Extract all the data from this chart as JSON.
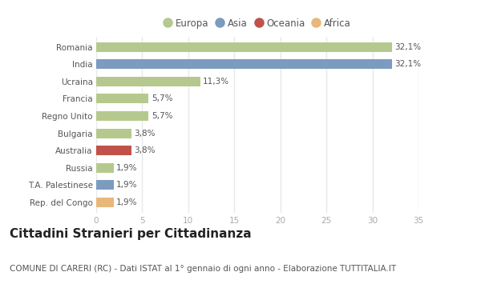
{
  "categories": [
    "Romania",
    "India",
    "Ucraina",
    "Francia",
    "Regno Unito",
    "Bulgaria",
    "Australia",
    "Russia",
    "T.A. Palestinese",
    "Rep. del Congo"
  ],
  "values": [
    32.1,
    32.1,
    11.3,
    5.7,
    5.7,
    3.8,
    3.8,
    1.9,
    1.9,
    1.9
  ],
  "labels": [
    "32,1%",
    "32,1%",
    "11,3%",
    "5,7%",
    "5,7%",
    "3,8%",
    "3,8%",
    "1,9%",
    "1,9%",
    "1,9%"
  ],
  "colors": [
    "#b5c98e",
    "#7b9bbf",
    "#b5c98e",
    "#b5c98e",
    "#b5c98e",
    "#b5c98e",
    "#c0524a",
    "#b5c98e",
    "#7b9bbf",
    "#e8b87a"
  ],
  "legend_labels": [
    "Europa",
    "Asia",
    "Oceania",
    "Africa"
  ],
  "legend_colors": [
    "#b5c98e",
    "#7b9bbf",
    "#c0524a",
    "#e8b87a"
  ],
  "xlim": [
    0,
    35
  ],
  "xticks": [
    0,
    5,
    10,
    15,
    20,
    25,
    30,
    35
  ],
  "title": "Cittadini Stranieri per Cittadinanza",
  "subtitle": "COMUNE DI CARERI (RC) - Dati ISTAT al 1° gennaio di ogni anno - Elaborazione TUTTITALIA.IT",
  "background_color": "#ffffff",
  "grid_color": "#e8e8e8",
  "bar_height": 0.55,
  "title_fontsize": 11,
  "subtitle_fontsize": 7.5,
  "label_fontsize": 7.5,
  "tick_fontsize": 7.5,
  "legend_fontsize": 8.5
}
